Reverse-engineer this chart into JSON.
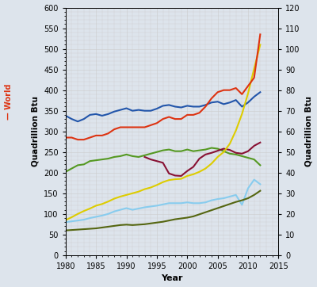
{
  "xlabel": "Year",
  "ylabel_left": "Quadrillion Btu",
  "ylabel_right": "Quadrillion Btu",
  "ylabel_left_annotation": "— World",
  "xlim": [
    1980,
    2015
  ],
  "ylim_left": [
    0,
    600
  ],
  "ylim_right": [
    0,
    120
  ],
  "years": [
    1980,
    1981,
    1982,
    1983,
    1984,
    1985,
    1986,
    1987,
    1988,
    1989,
    1990,
    1991,
    1992,
    1993,
    1994,
    1995,
    1996,
    1997,
    1998,
    1999,
    2000,
    2001,
    2002,
    2003,
    2004,
    2005,
    2006,
    2007,
    2008,
    2009,
    2010,
    2011,
    2012
  ],
  "series": {
    "blue": {
      "color": "#2255aa",
      "linewidth": 1.5,
      "axis": "left",
      "data": [
        338,
        330,
        324,
        330,
        340,
        342,
        338,
        342,
        348,
        352,
        356,
        350,
        352,
        350,
        350,
        355,
        362,
        364,
        360,
        358,
        362,
        360,
        360,
        364,
        370,
        372,
        366,
        370,
        376,
        360,
        370,
        384,
        395
      ]
    },
    "red_world": {
      "color": "#dd3311",
      "linewidth": 1.5,
      "axis": "right",
      "data": [
        57,
        57,
        56,
        56,
        57,
        58,
        58,
        59,
        61,
        62,
        62,
        62,
        62,
        62,
        63,
        64,
        66,
        67,
        66,
        66,
        68,
        68,
        69,
        72,
        76,
        79,
        80,
        80,
        81,
        78,
        82,
        86,
        107
      ]
    },
    "green": {
      "color": "#559922",
      "linewidth": 1.5,
      "axis": "left",
      "data": [
        202,
        210,
        218,
        220,
        228,
        230,
        232,
        234,
        238,
        240,
        244,
        240,
        238,
        242,
        246,
        250,
        254,
        256,
        252,
        252,
        256,
        252,
        254,
        256,
        260,
        258,
        252,
        246,
        244,
        240,
        236,
        232,
        218
      ]
    },
    "dark_red": {
      "color": "#881133",
      "linewidth": 1.5,
      "axis": "left",
      "data": [
        null,
        null,
        null,
        null,
        null,
        null,
        null,
        null,
        null,
        null,
        null,
        null,
        null,
        238,
        232,
        228,
        224,
        198,
        193,
        192,
        204,
        214,
        234,
        244,
        248,
        253,
        258,
        255,
        248,
        246,
        252,
        265,
        273
      ]
    },
    "yellow": {
      "color": "#ddcc00",
      "linewidth": 1.5,
      "axis": "left",
      "data": [
        85,
        92,
        100,
        107,
        113,
        120,
        124,
        130,
        137,
        142,
        146,
        150,
        154,
        160,
        164,
        170,
        177,
        182,
        184,
        185,
        192,
        196,
        202,
        210,
        222,
        238,
        250,
        270,
        302,
        342,
        392,
        452,
        510
      ]
    },
    "light_blue": {
      "color": "#88ccee",
      "linewidth": 1.5,
      "axis": "left",
      "data": [
        80,
        82,
        84,
        86,
        90,
        93,
        96,
        100,
        106,
        110,
        114,
        110,
        113,
        116,
        118,
        120,
        123,
        126,
        126,
        126,
        128,
        126,
        126,
        128,
        133,
        136,
        138,
        142,
        146,
        122,
        162,
        183,
        172
      ]
    },
    "dark_olive": {
      "color": "#556611",
      "linewidth": 1.5,
      "axis": "left",
      "data": [
        60,
        61,
        62,
        63,
        64,
        65,
        67,
        69,
        71,
        73,
        74,
        73,
        74,
        75,
        77,
        79,
        81,
        84,
        87,
        89,
        91,
        94,
        99,
        104,
        109,
        114,
        119,
        124,
        129,
        133,
        138,
        146,
        156
      ]
    }
  },
  "xticks": [
    1980,
    1985,
    1990,
    1995,
    2000,
    2005,
    2010,
    2015
  ],
  "yticks_left": [
    0,
    50,
    100,
    150,
    200,
    250,
    300,
    350,
    400,
    450,
    500,
    550,
    600
  ],
  "yticks_right": [
    0,
    10,
    20,
    30,
    40,
    50,
    60,
    70,
    80,
    90,
    100,
    110,
    120
  ],
  "grid_color": "#cccccc",
  "bg_color": "#dde4ec",
  "fig_bg": "#dde4ec"
}
